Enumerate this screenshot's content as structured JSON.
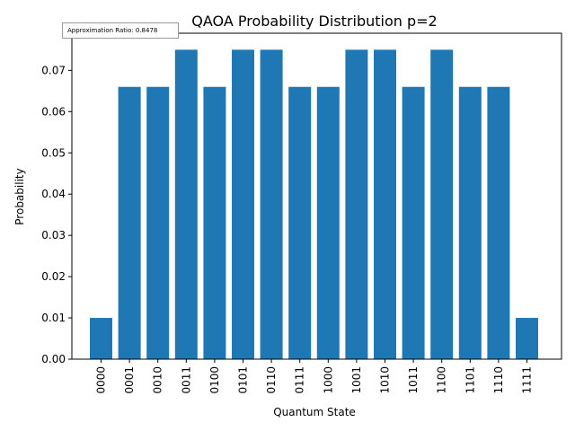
{
  "chart_data": {
    "type": "bar",
    "title": "QAOA Probability Distribution p=2",
    "xlabel": "Quantum State",
    "ylabel": "Probability",
    "categories": [
      "0000",
      "0001",
      "0010",
      "0011",
      "0100",
      "0101",
      "0110",
      "0111",
      "1000",
      "1001",
      "1010",
      "1011",
      "1100",
      "1101",
      "1110",
      "1111"
    ],
    "values": [
      0.01,
      0.066,
      0.066,
      0.075,
      0.066,
      0.075,
      0.075,
      0.066,
      0.066,
      0.075,
      0.075,
      0.066,
      0.075,
      0.066,
      0.066,
      0.01
    ],
    "ylim": [
      0,
      0.079
    ],
    "yticks": [
      0.0,
      0.01,
      0.02,
      0.03,
      0.04,
      0.05,
      0.06,
      0.07
    ],
    "ytick_labels": [
      "0.00",
      "0.01",
      "0.02",
      "0.03",
      "0.04",
      "0.05",
      "0.06",
      "0.07"
    ],
    "bar_color": "#1f77b4",
    "grid": false,
    "annotation": "Approximation Ratio: 0.8478"
  }
}
